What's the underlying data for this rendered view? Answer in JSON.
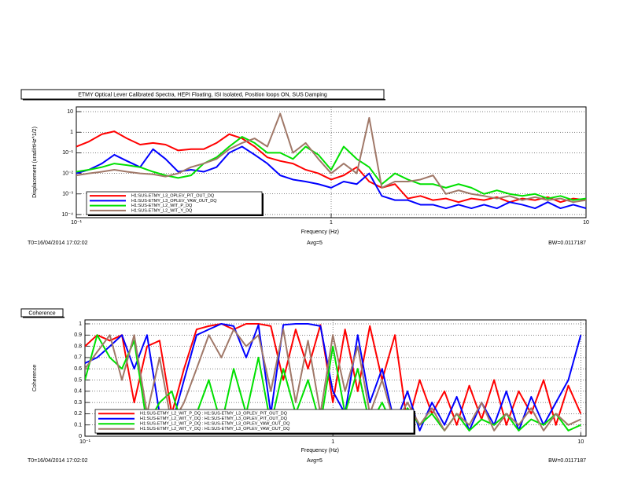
{
  "chart_data": [
    {
      "type": "line",
      "title": "ETMY Optical Lever Calibrated Spectra, HEPI Floating, ISI Isolated, Position loops ON, SUS Damping",
      "x_label": "Frequency (Hz)",
      "y_label": "Displacement (urad/rtHz^1/2)",
      "annotations": [
        "T0=16/04/2014 17:02:02",
        "Avg=5",
        "BW=0.0117187"
      ],
      "log_x": true,
      "log_y": true,
      "grid": true,
      "legend": "bottom-left",
      "xlim": [
        0.1,
        10
      ],
      "ylim": [
        7e-05,
        17
      ],
      "xticks": [
        {
          "value": 0.1,
          "label": "10⁻¹"
        },
        1,
        10
      ],
      "yticks": [
        {
          "value": 0.0001,
          "label": "10⁻⁴"
        },
        {
          "value": 0.001,
          "label": "10⁻³"
        },
        {
          "value": 0.01,
          "label": "10⁻²"
        },
        {
          "value": 0.1,
          "label": "10⁻¹"
        },
        1,
        10
      ],
      "x": [
        0.1,
        0.112,
        0.126,
        0.141,
        0.158,
        0.178,
        0.2,
        0.224,
        0.251,
        0.282,
        0.316,
        0.355,
        0.398,
        0.447,
        0.501,
        0.562,
        0.631,
        0.708,
        0.794,
        0.891,
        1,
        1.12,
        1.26,
        1.41,
        1.58,
        1.78,
        2,
        2.24,
        2.51,
        2.82,
        3.16,
        3.55,
        3.98,
        4.47,
        5.01,
        5.62,
        6.31,
        7.08,
        7.94,
        8.91,
        10
      ],
      "series": [
        {
          "name": "H1:SUS-ETMY_L3_OPLEV_PIT_OUT_DQ",
          "color": "#ff0000",
          "values": [
            0.2,
            0.35,
            0.8,
            1.1,
            0.5,
            0.25,
            0.3,
            0.25,
            0.13,
            0.15,
            0.15,
            0.3,
            0.8,
            0.5,
            0.2,
            0.06,
            0.04,
            0.03,
            0.015,
            0.01,
            0.005,
            0.008,
            0.02,
            0.004,
            0.002,
            0.003,
            0.0006,
            0.0008,
            0.0005,
            0.0006,
            0.0004,
            0.0006,
            0.0005,
            0.0007,
            0.0004,
            0.0006,
            0.0005,
            0.0007,
            0.0004,
            0.0006,
            0.0005
          ]
        },
        {
          "name": "H1:SUS-ETMY_L3_OPLEV_YAW_OUT_DQ",
          "color": "#0000ff",
          "values": [
            0.01,
            0.015,
            0.03,
            0.08,
            0.04,
            0.02,
            0.15,
            0.05,
            0.012,
            0.015,
            0.012,
            0.02,
            0.1,
            0.2,
            0.08,
            0.03,
            0.008,
            0.005,
            0.004,
            0.003,
            0.002,
            0.004,
            0.003,
            0.01,
            0.0008,
            0.0005,
            0.0005,
            0.0003,
            0.0003,
            0.0002,
            0.0003,
            0.0002,
            0.0003,
            0.0002,
            0.0004,
            0.0003,
            0.0002,
            0.0004,
            0.0002,
            0.0003,
            0.0002
          ]
        },
        {
          "name": "H1:SUS-ETMY_L2_WIT_P_DQ",
          "color": "#00e000",
          "values": [
            0.012,
            0.015,
            0.02,
            0.03,
            0.025,
            0.02,
            0.012,
            0.008,
            0.006,
            0.008,
            0.03,
            0.06,
            0.2,
            0.6,
            0.3,
            0.1,
            0.1,
            0.05,
            0.2,
            0.08,
            0.015,
            0.2,
            0.05,
            0.02,
            0.003,
            0.01,
            0.005,
            0.003,
            0.003,
            0.002,
            0.003,
            0.002,
            0.001,
            0.0015,
            0.001,
            0.0008,
            0.001,
            0.0006,
            0.0008,
            0.0005,
            0.0006
          ]
        },
        {
          "name": "H1:SUS-ETMY_L2_WIT_Y_DQ",
          "color": "#a07868",
          "values": [
            0.008,
            0.01,
            0.012,
            0.015,
            0.012,
            0.01,
            0.009,
            0.007,
            0.01,
            0.02,
            0.03,
            0.05,
            0.15,
            0.3,
            0.5,
            0.2,
            8,
            0.1,
            0.3,
            0.05,
            0.01,
            0.03,
            0.01,
            5,
            0.002,
            0.004,
            0.004,
            0.005,
            0.008,
            0.001,
            0.0015,
            0.001,
            0.0008,
            0.0006,
            0.0008,
            0.0005,
            0.0007,
            0.0005,
            0.0006,
            0.0004,
            0.0005
          ]
        }
      ]
    },
    {
      "type": "line",
      "title": "Coherence",
      "x_label": "Frequency (Hz)",
      "y_label": "Coherence",
      "annotations": [
        "T0=16/04/2014 17:02:02",
        "Avg=5",
        "BW=0.0117187"
      ],
      "log_x": true,
      "log_y": false,
      "grid": true,
      "legend": "bottom-left",
      "xlim": [
        0.1,
        10.5
      ],
      "ylim": [
        0,
        1.035
      ],
      "xticks": [
        {
          "value": 0.1,
          "label": "10⁻¹"
        },
        1,
        10
      ],
      "yticks": [
        0,
        0.1,
        0.2,
        0.3,
        0.4,
        0.5,
        0.6,
        0.7,
        0.8,
        0.9,
        1
      ],
      "x": [
        0.1,
        0.112,
        0.126,
        0.141,
        0.158,
        0.178,
        0.2,
        0.224,
        0.251,
        0.282,
        0.316,
        0.355,
        0.398,
        0.447,
        0.501,
        0.562,
        0.631,
        0.708,
        0.794,
        0.891,
        1,
        1.12,
        1.26,
        1.41,
        1.58,
        1.78,
        2,
        2.24,
        2.51,
        2.82,
        3.16,
        3.55,
        3.98,
        4.47,
        5.01,
        5.62,
        6.31,
        7.08,
        7.94,
        8.91,
        10
      ],
      "series": [
        {
          "name": "H1:SUS-ETMY_L2_WIT_P_DQ : H1:SUS-ETMY_L3_OPLEV_PIT_OUT_DQ",
          "color": "#ff0000",
          "values": [
            0.8,
            0.9,
            0.85,
            0.9,
            0.3,
            0.8,
            0.85,
            0.2,
            0.6,
            0.95,
            0.98,
            1,
            0.95,
            1,
            1,
            0.98,
            0.5,
            0.95,
            0.6,
            0.99,
            0.3,
            0.95,
            0.4,
            0.98,
            0.5,
            0.9,
            0.1,
            0.5,
            0.2,
            0.4,
            0.1,
            0.45,
            0.15,
            0.5,
            0.1,
            0.4,
            0.2,
            0.5,
            0.1,
            0.45,
            0.2
          ]
        },
        {
          "name": "H1:SUS-ETMY_L2_WIT_Y_DQ : H1:SUS-ETMY_L3_OPLEV_PIT_OUT_DQ",
          "color": "#0000ff",
          "values": [
            0.65,
            0.7,
            0.8,
            0.9,
            0.6,
            0.9,
            0.2,
            0.1,
            0.5,
            0.9,
            0.95,
            1,
            0.98,
            0.7,
            0.99,
            0.2,
            0.99,
            1,
            1,
            0.98,
            0.4,
            0.2,
            0.9,
            0.3,
            0.6,
            0.1,
            0.4,
            0.05,
            0.3,
            0.1,
            0.35,
            0.05,
            0.3,
            0.1,
            0.4,
            0.05,
            0.35,
            0.1,
            0.3,
            0.5,
            0.9
          ]
        },
        {
          "name": "H1:SUS-ETMY_L2_WIT_P_DQ : H1:SUS-ETMY_L3_OPLEV_YAW_OUT_DQ",
          "color": "#00e000",
          "values": [
            0.5,
            0.9,
            0.7,
            0.6,
            0.85,
            0.1,
            0.3,
            0.4,
            0.05,
            0.2,
            0.5,
            0.1,
            0.6,
            0.2,
            0.7,
            0.1,
            0.6,
            0.2,
            0.5,
            0.1,
            0.8,
            0.2,
            0.6,
            0.1,
            0.3,
            0.05,
            0.25,
            0.1,
            0.2,
            0.05,
            0.2,
            0.05,
            0.15,
            0.1,
            0.2,
            0.05,
            0.15,
            0.1,
            0.2,
            0.05,
            0.1
          ]
        },
        {
          "name": "H1:SUS-ETMY_L2_WIT_Y_DQ : H1:SUS-ETMY_L3_OPLEV_YAW_OUT_DQ",
          "color": "#a07868",
          "values": [
            0.6,
            0.75,
            0.9,
            0.5,
            0.9,
            0.2,
            0.7,
            0.1,
            0.3,
            0.6,
            0.9,
            0.7,
            0.95,
            0.8,
            0.9,
            0.4,
            0.95,
            0.3,
            0.85,
            0.2,
            0.9,
            0.4,
            0.8,
            0.2,
            0.5,
            0.1,
            0.3,
            0.1,
            0.25,
            0.05,
            0.2,
            0.1,
            0.3,
            0.05,
            0.2,
            0.1,
            0.25,
            0.05,
            0.2,
            0.1,
            0.15
          ]
        }
      ]
    }
  ]
}
